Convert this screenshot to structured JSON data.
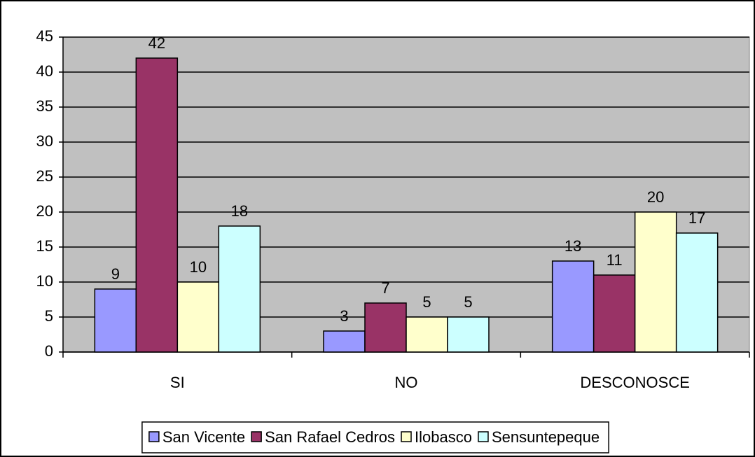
{
  "chart_data": {
    "type": "bar",
    "categories": [
      "SI",
      "NO",
      "DESCONOSCE"
    ],
    "series": [
      {
        "name": "San Vicente",
        "color": "#9999ff",
        "values": [
          9,
          3,
          13
        ]
      },
      {
        "name": "San Rafael Cedros",
        "color": "#993366",
        "values": [
          42,
          7,
          11
        ]
      },
      {
        "name": "Ilobasco",
        "color": "#ffffcc",
        "values": [
          10,
          5,
          20
        ]
      },
      {
        "name": "Sensuntepeque",
        "color": "#ccffff",
        "values": [
          18,
          5,
          17
        ]
      }
    ],
    "ylim": [
      0,
      45
    ],
    "yticks": [
      0,
      5,
      10,
      15,
      20,
      25,
      30,
      35,
      40,
      45
    ],
    "grid": true,
    "plot_background": "#c0c0c0",
    "legend": "bottom"
  }
}
